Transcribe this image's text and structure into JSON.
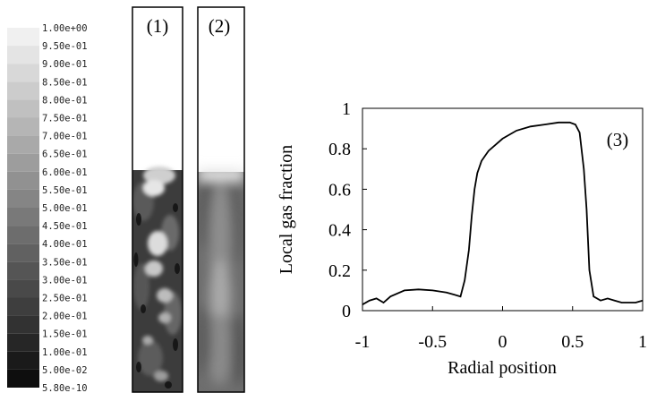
{
  "colorbar": {
    "labels": [
      "1.00e+00",
      "9.50e-01",
      "9.00e-01",
      "8.50e-01",
      "8.00e-01",
      "7.50e-01",
      "7.00e-01",
      "6.50e-01",
      "6.00e-01",
      "5.50e-01",
      "5.00e-01",
      "4.50e-01",
      "4.00e-01",
      "3.50e-01",
      "3.00e-01",
      "2.50e-01",
      "2.00e-01",
      "1.50e-01",
      "1.00e-01",
      "5.00e-02",
      "5.80e-10"
    ]
  },
  "panels": {
    "p1_label": "(1)",
    "p2_label": "(2)",
    "p3_label": "(3)"
  },
  "chart_data": {
    "type": "line",
    "xlabel": "Radial position",
    "ylabel": "Local gas fraction",
    "xlim": [
      -1,
      1
    ],
    "ylim": [
      0,
      1
    ],
    "xticks": [
      -1,
      -0.5,
      0,
      0.5,
      1
    ],
    "xtick_labels": [
      "-1",
      "-0.5",
      "0",
      "0.5",
      "1"
    ],
    "yticks": [
      0,
      0.2,
      0.4,
      0.6,
      0.8,
      1
    ],
    "ytick_labels": [
      "0",
      "0.2",
      "0.4",
      "0.6",
      "0.8",
      "1"
    ],
    "grid": false,
    "series": [
      {
        "x": [
          -1,
          -0.95,
          -0.9,
          -0.85,
          -0.8,
          -0.7,
          -0.6,
          -0.5,
          -0.4,
          -0.3,
          -0.27,
          -0.24,
          -0.22,
          -0.2,
          -0.18,
          -0.15,
          -0.12,
          -0.1,
          -0.05,
          0,
          0.05,
          0.1,
          0.2,
          0.3,
          0.4,
          0.48,
          0.52,
          0.55,
          0.58,
          0.6,
          0.62,
          0.65,
          0.7,
          0.75,
          0.8,
          0.85,
          0.9,
          0.95,
          1
        ],
        "y": [
          0.03,
          0.05,
          0.06,
          0.04,
          0.07,
          0.1,
          0.105,
          0.1,
          0.09,
          0.07,
          0.15,
          0.3,
          0.47,
          0.6,
          0.68,
          0.74,
          0.77,
          0.79,
          0.82,
          0.85,
          0.87,
          0.89,
          0.91,
          0.92,
          0.93,
          0.93,
          0.92,
          0.88,
          0.7,
          0.5,
          0.2,
          0.07,
          0.05,
          0.06,
          0.05,
          0.04,
          0.04,
          0.04,
          0.05
        ]
      }
    ]
  }
}
